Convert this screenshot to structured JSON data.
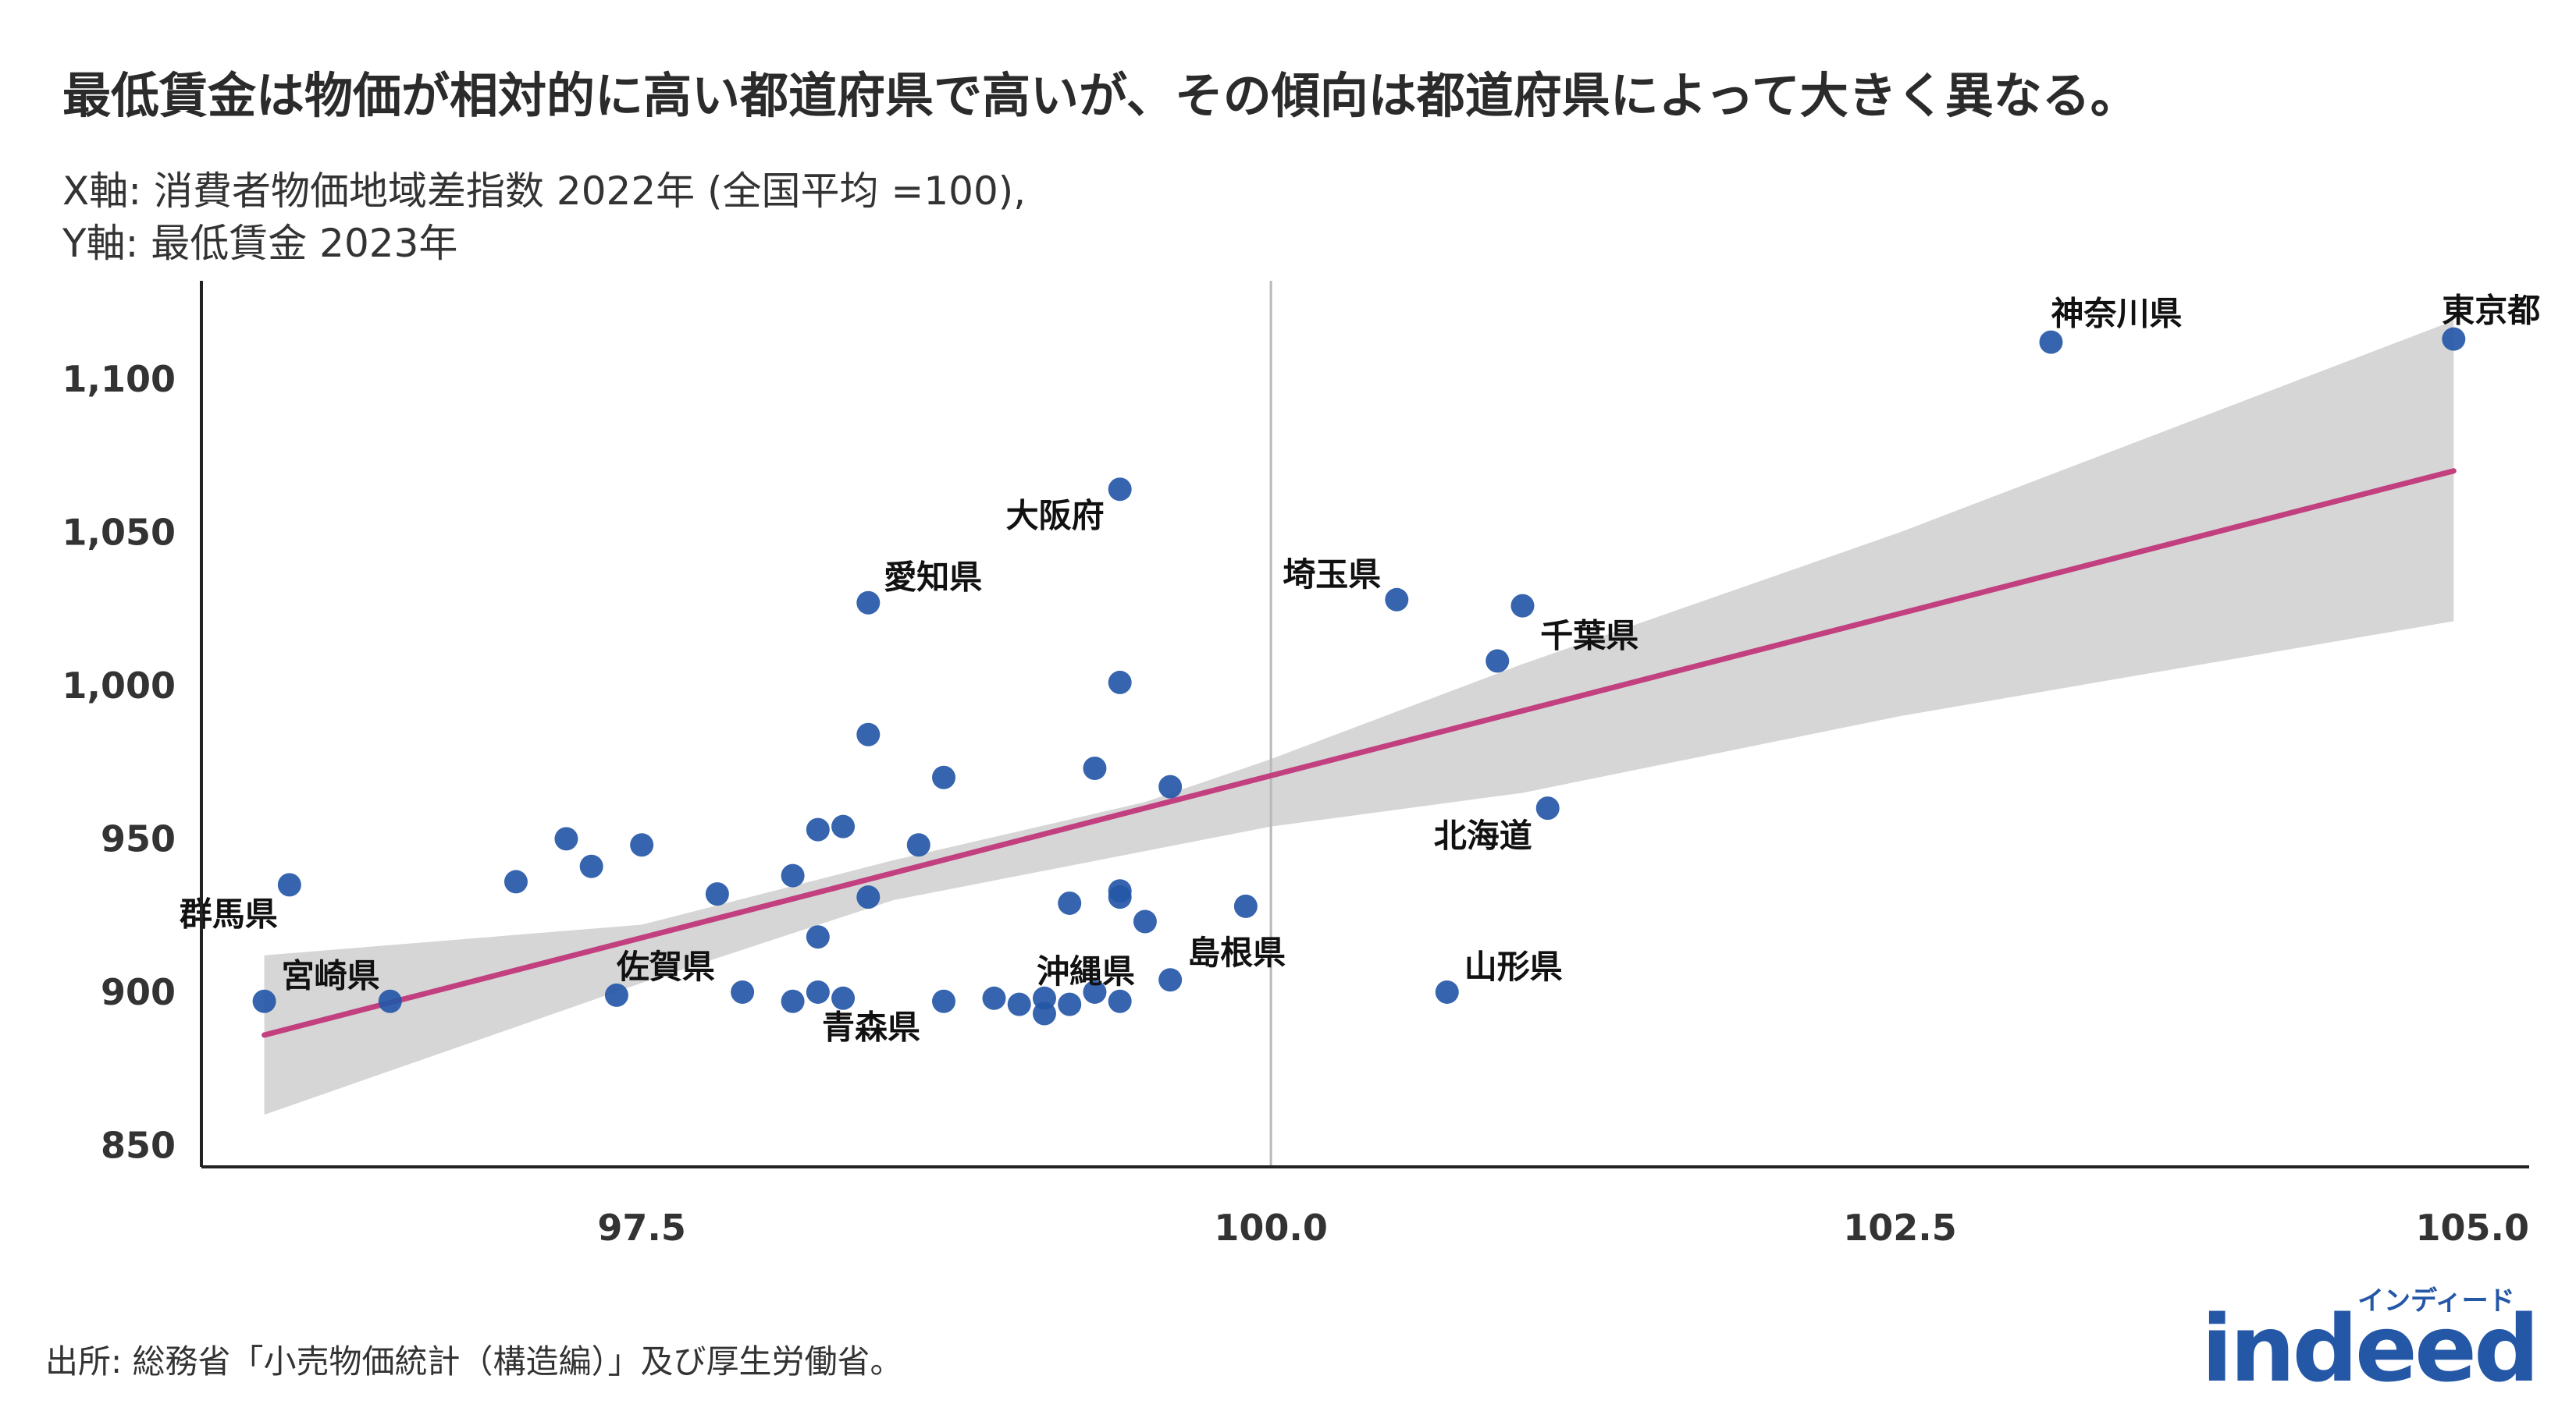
{
  "title": "最低賃金は物価が相対的に高い都道府県で高いが、その傾向は都道府県によって大きく異なる。",
  "subtitle_x": "X軸: 消費者物価地域差指数 2022年 (全国平均 =100),",
  "subtitle_y": "Y軸: 最低賃金 2023年",
  "source": "出所: 総務省「小売物価統計（構造編）」及び厚生労働省。",
  "brand": {
    "kana": "インディード",
    "word": "indeed"
  },
  "colors": {
    "point": "#2557a7",
    "trend": "#c2407f",
    "band": "#d6d6d6",
    "axis": "#222222",
    "refline": "#b8b8b8"
  },
  "chart_data": {
    "type": "scatter",
    "xlim": [
      95.75,
      105.0
    ],
    "ylim": [
      843,
      1132
    ],
    "x_ticks": [
      97.5,
      100.0,
      102.5,
      105.0
    ],
    "x_tick_labels": [
      "97.5",
      "100.0",
      "102.5",
      "105.0"
    ],
    "y_ticks": [
      850,
      900,
      950,
      1000,
      1050,
      1100
    ],
    "y_tick_labels": [
      "850",
      "900",
      "950",
      "1,000",
      "1,050",
      "1,100"
    ],
    "reference_line_x": 100.0,
    "trend": {
      "x": [
        96.0,
        104.7
      ],
      "y": [
        886,
        1070
      ]
    },
    "confidence_band": {
      "x": [
        96.0,
        97.5,
        98.5,
        99.5,
        100.0,
        101.0,
        102.5,
        104.7
      ],
      "lower": [
        860,
        903,
        930,
        946,
        954,
        965,
        990,
        1021
      ],
      "upper": [
        912,
        922,
        943,
        962,
        976,
        1007,
        1050,
        1119
      ]
    },
    "points": [
      {
        "x": 104.7,
        "y": 1113,
        "label": "東京都"
      },
      {
        "x": 103.1,
        "y": 1112,
        "label": "神奈川県"
      },
      {
        "x": 99.4,
        "y": 1064,
        "label": "大阪府"
      },
      {
        "x": 100.5,
        "y": 1028,
        "label": "埼玉県"
      },
      {
        "x": 98.4,
        "y": 1027,
        "label": "愛知県"
      },
      {
        "x": 101.0,
        "y": 1026,
        "label": ""
      },
      {
        "x": 100.9,
        "y": 1008,
        "label": "千葉県"
      },
      {
        "x": 99.4,
        "y": 1001,
        "label": ""
      },
      {
        "x": 98.4,
        "y": 984,
        "label": ""
      },
      {
        "x": 98.7,
        "y": 970,
        "label": ""
      },
      {
        "x": 99.3,
        "y": 973,
        "label": ""
      },
      {
        "x": 99.6,
        "y": 967,
        "label": ""
      },
      {
        "x": 101.1,
        "y": 960,
        "label": "北海道"
      },
      {
        "x": 98.2,
        "y": 953,
        "label": ""
      },
      {
        "x": 98.3,
        "y": 954,
        "label": ""
      },
      {
        "x": 97.2,
        "y": 950,
        "label": ""
      },
      {
        "x": 97.5,
        "y": 948,
        "label": ""
      },
      {
        "x": 98.6,
        "y": 948,
        "label": ""
      },
      {
        "x": 97.3,
        "y": 941,
        "label": ""
      },
      {
        "x": 98.1,
        "y": 938,
        "label": ""
      },
      {
        "x": 97.0,
        "y": 936,
        "label": ""
      },
      {
        "x": 96.1,
        "y": 935,
        "label": "群馬県"
      },
      {
        "x": 97.8,
        "y": 932,
        "label": ""
      },
      {
        "x": 98.4,
        "y": 931,
        "label": ""
      },
      {
        "x": 99.4,
        "y": 933,
        "label": ""
      },
      {
        "x": 99.4,
        "y": 931,
        "label": ""
      },
      {
        "x": 99.2,
        "y": 929,
        "label": ""
      },
      {
        "x": 99.9,
        "y": 928,
        "label": ""
      },
      {
        "x": 99.5,
        "y": 923,
        "label": ""
      },
      {
        "x": 98.2,
        "y": 918,
        "label": ""
      },
      {
        "x": 99.6,
        "y": 904,
        "label": "島根県"
      },
      {
        "x": 100.7,
        "y": 900,
        "label": "山形県"
      },
      {
        "x": 97.4,
        "y": 899,
        "label": "佐賀県"
      },
      {
        "x": 97.9,
        "y": 900,
        "label": ""
      },
      {
        "x": 98.2,
        "y": 900,
        "label": ""
      },
      {
        "x": 96.0,
        "y": 897,
        "label": "宮崎県"
      },
      {
        "x": 96.5,
        "y": 897,
        "label": ""
      },
      {
        "x": 98.1,
        "y": 897,
        "label": ""
      },
      {
        "x": 98.3,
        "y": 898,
        "label": ""
      },
      {
        "x": 98.7,
        "y": 897,
        "label": "青森県"
      },
      {
        "x": 98.9,
        "y": 898,
        "label": ""
      },
      {
        "x": 99.0,
        "y": 896,
        "label": ""
      },
      {
        "x": 99.1,
        "y": 898,
        "label": "沖縄県"
      },
      {
        "x": 99.1,
        "y": 893,
        "label": ""
      },
      {
        "x": 99.2,
        "y": 896,
        "label": ""
      },
      {
        "x": 99.3,
        "y": 900,
        "label": ""
      },
      {
        "x": 99.4,
        "y": 897,
        "label": ""
      }
    ]
  }
}
